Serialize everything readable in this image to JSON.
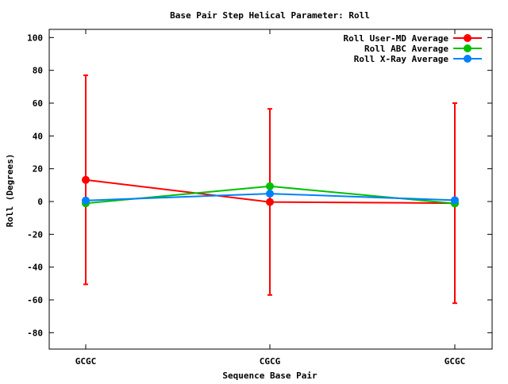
{
  "chart_data": {
    "type": "line",
    "title": "Base Pair Step Helical Parameter: Roll",
    "xlabel": "Sequence Base Pair",
    "ylabel": "Roll (Degrees)",
    "categories": [
      "GCGC",
      "CGCG",
      "GCGC"
    ],
    "ylim": [
      -90,
      105
    ],
    "yticks": [
      -80,
      -60,
      -40,
      -20,
      0,
      20,
      40,
      60,
      80,
      100
    ],
    "ytick_labels": [
      "-80",
      "-60",
      "-40",
      "-20",
      "0",
      "20",
      "40",
      "60",
      "80",
      "100"
    ],
    "grid": false,
    "legend_position": "top-right",
    "series": [
      {
        "name": "Roll User-MD Average",
        "color": "#ff0000",
        "values": [
          13.2,
          -0.3,
          -1.0
        ],
        "error_low": [
          -50.5,
          -57,
          -62
        ],
        "error_high": [
          77,
          56.5,
          60
        ]
      },
      {
        "name": "Roll ABC Average",
        "color": "#00c000",
        "values": [
          -1.1,
          9.3,
          -1.2
        ]
      },
      {
        "name": "Roll X-Ray Average",
        "color": "#0080ff",
        "values": [
          0.6,
          4.8,
          0.8
        ]
      }
    ]
  }
}
